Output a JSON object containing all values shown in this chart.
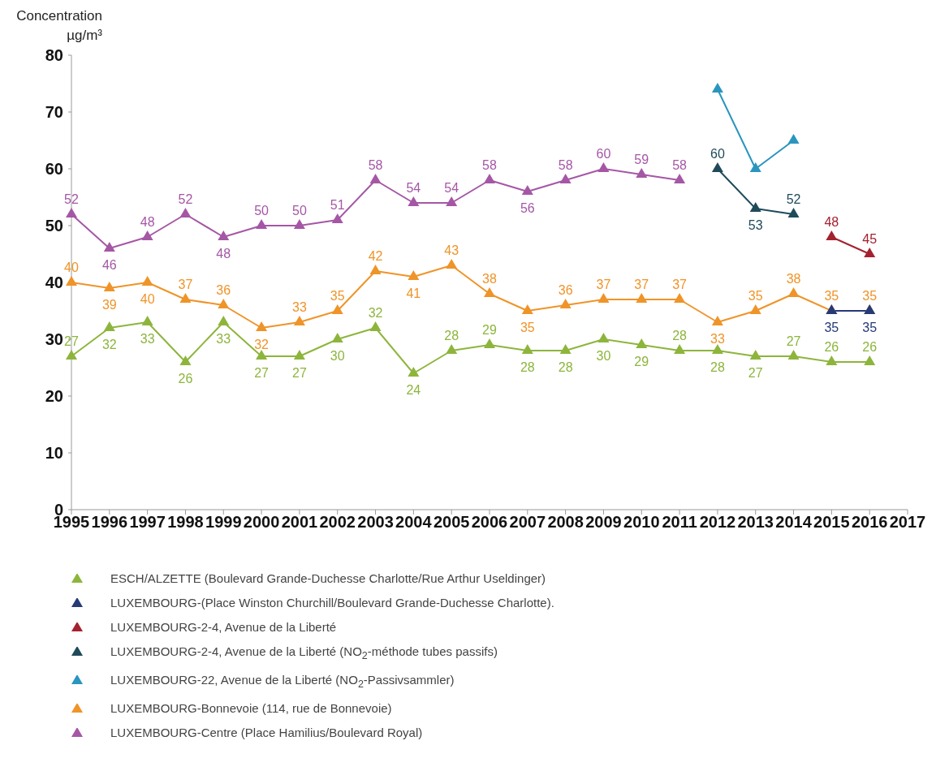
{
  "chart_data": {
    "type": "line",
    "ylabel": "Concentration µg/m³",
    "categories": [
      "1995",
      "1996",
      "1997",
      "1998",
      "1999",
      "2000",
      "2001",
      "2002",
      "2003",
      "2004",
      "2005",
      "2006",
      "2007",
      "2008",
      "2009",
      "2010",
      "2011",
      "2012",
      "2013",
      "2014",
      "2015",
      "2016",
      "2017"
    ],
    "ylim": [
      0,
      80
    ],
    "yticks": [
      0,
      10,
      20,
      30,
      40,
      50,
      60,
      70,
      80
    ],
    "grid": false,
    "legend": "bottom",
    "marker": "triangle",
    "line_style": "solid",
    "series": [
      {
        "name": "ESCH/ALZETTE (Boulevard Grande-Duchesse Charlotte/Rue Arthur Useldinger)",
        "color": "#8db53c",
        "values": [
          27,
          32,
          33,
          26,
          33,
          27,
          27,
          30,
          32,
          24,
          28,
          29,
          28,
          28,
          30,
          29,
          28,
          28,
          27,
          27,
          26,
          26,
          null
        ],
        "value_labels": [
          "27",
          "32",
          "33",
          "26",
          "33",
          "27",
          "27",
          "30",
          "32",
          "24",
          "28",
          "29",
          "28",
          "28",
          "30",
          "29",
          "28",
          "28",
          "27",
          "27",
          "26",
          "26",
          null
        ]
      },
      {
        "name": "LUXEMBOURG-Bonnevoie (114, rue de Bonnevoie)",
        "color": "#ef9428",
        "values": [
          40,
          39,
          40,
          37,
          36,
          32,
          33,
          35,
          42,
          41,
          43,
          38,
          35,
          36,
          37,
          37,
          37,
          33,
          35,
          38,
          35,
          35,
          null
        ],
        "value_labels": [
          "40",
          "39",
          "40",
          "37",
          "36",
          "32",
          "33",
          "35",
          "42",
          "41",
          "43",
          "38",
          "35",
          "36",
          "37",
          "37",
          "37",
          "33",
          "35",
          "38",
          "35",
          "35",
          null
        ]
      },
      {
        "name": "LUXEMBOURG-22, Avenue de la Liberté (NO$_{2}$-Passivsammler)",
        "color": "#2a95bf",
        "values": [
          null,
          null,
          null,
          null,
          null,
          null,
          null,
          null,
          null,
          null,
          null,
          null,
          null,
          null,
          null,
          null,
          null,
          74,
          60,
          65,
          null,
          null,
          null
        ]
      },
      {
        "name": "LUXEMBOURG-2-4, Avenue de la Liberté (NO$_{2}$-méthode tubes passifs)",
        "color": "#1f4a5a",
        "values": [
          null,
          null,
          null,
          null,
          null,
          null,
          null,
          null,
          null,
          null,
          null,
          null,
          null,
          null,
          null,
          null,
          null,
          60,
          53,
          52,
          null,
          null,
          null
        ],
        "value_labels": [
          null,
          null,
          null,
          null,
          null,
          null,
          null,
          null,
          null,
          null,
          null,
          null,
          null,
          null,
          null,
          null,
          null,
          "60",
          "53",
          "52",
          null,
          null,
          null
        ]
      },
      {
        "name": "LUXEMBOURG-2-4, Avenue de la Liberté",
        "color": "#a3222f",
        "values": [
          null,
          null,
          null,
          null,
          null,
          null,
          null,
          null,
          null,
          null,
          null,
          null,
          null,
          null,
          null,
          null,
          null,
          null,
          null,
          null,
          48,
          45,
          null
        ],
        "value_labels": [
          null,
          null,
          null,
          null,
          null,
          null,
          null,
          null,
          null,
          null,
          null,
          null,
          null,
          null,
          null,
          null,
          null,
          null,
          null,
          null,
          "48",
          "45",
          null
        ]
      },
      {
        "name": "LUXEMBOURG-(Place Winston Churchill/Boulevard Grande-Duchesse Charlotte).",
        "color": "#263a78",
        "values": [
          null,
          null,
          null,
          null,
          null,
          null,
          null,
          null,
          null,
          null,
          null,
          null,
          null,
          null,
          null,
          null,
          null,
          null,
          null,
          null,
          35,
          35,
          null
        ],
        "value_labels": [
          null,
          null,
          null,
          null,
          null,
          null,
          null,
          null,
          null,
          null,
          null,
          null,
          null,
          null,
          null,
          null,
          null,
          null,
          null,
          null,
          "35",
          "35",
          null
        ]
      },
      {
        "name": "LUXEMBOURG-Centre (Place Hamilius/Boulevard Royal)",
        "color": "#a557a5",
        "values": [
          52,
          46,
          48,
          52,
          48,
          50,
          50,
          51,
          58,
          54,
          54,
          58,
          56,
          58,
          60,
          59,
          58,
          null,
          null,
          null,
          null,
          null,
          null
        ],
        "value_labels": [
          "52",
          "46",
          "48",
          "52",
          "48",
          "50",
          "50",
          "51",
          "58",
          "54",
          "54",
          "58",
          "56",
          "58",
          "60",
          "59",
          "58",
          null,
          null,
          null,
          null,
          null,
          null
        ]
      }
    ]
  }
}
